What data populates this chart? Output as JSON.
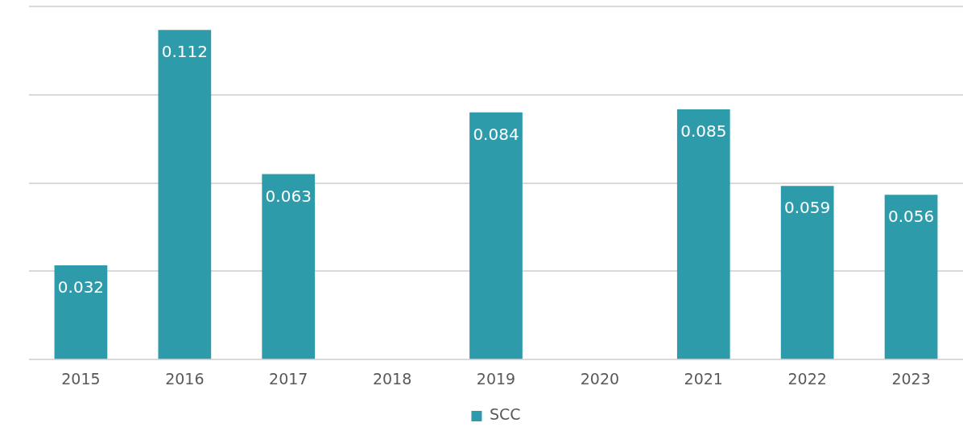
{
  "chart_data": {
    "type": "bar",
    "categories": [
      "2015",
      "2016",
      "2017",
      "2018",
      "2019",
      "2020",
      "2021",
      "2022",
      "2023"
    ],
    "series": [
      {
        "name": "SCC",
        "color": "#2e9bab",
        "values": [
          0.032,
          0.112,
          0.063,
          null,
          0.084,
          null,
          0.085,
          0.059,
          0.056
        ]
      }
    ],
    "ylim": [
      0,
      0.12
    ],
    "yticks": [
      {
        "value": 0,
        "label": null
      },
      {
        "value": 0.03,
        "label": null
      },
      {
        "value": 0.06,
        "label": null
      },
      {
        "value": 0.09,
        "label": null
      },
      {
        "value": 0.12,
        "label": null
      }
    ],
    "grid": "y",
    "tick_labels": "x",
    "legend": "bottom",
    "data_labels": true
  }
}
